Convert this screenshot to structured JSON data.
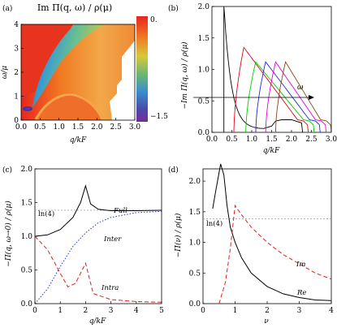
{
  "panels": {
    "a": {
      "label": "(a)",
      "title": "Im Π(q, ω) / ρ(μ)",
      "xlabel": "q/kF",
      "ylabel": "ω/μ"
    },
    "b": {
      "label": "(b)",
      "ylabel": "−Im Π(q, ω) / ρ(μ)",
      "xlabel": "q/kF",
      "arrow_label": "ω"
    },
    "c": {
      "label": "(c)",
      "ylabel": "−Π(q, ω→0) / ρ(μ)",
      "xlabel": "q/kF",
      "ref_label": "ln(4)",
      "labels": {
        "full": "Full",
        "inter": "Inter",
        "intra": "Intra"
      }
    },
    "d": {
      "label": "(d)",
      "ylabel": "−Π(ν) / ρ(μ)",
      "xlabel": "ν",
      "ref_label": "ln(4)",
      "labels": {
        "im": "Im",
        "re": "Re"
      }
    }
  },
  "colorbar": {
    "top_label": "0.",
    "bottom_label": "−1.5"
  },
  "colors": {
    "full": "#000000",
    "inter": "#2233dd",
    "intra": "#dd2222",
    "b_series": [
      "#000000",
      "#e8001a",
      "#00cc00",
      "#1e2bdd",
      "#e000e0",
      "#8b4513"
    ]
  },
  "chart_data": [
    {
      "panel": "a",
      "type": "heatmap",
      "xlim": [
        0,
        3
      ],
      "ylim": [
        0,
        4
      ],
      "xticks": [
        "0.0",
        "0.5",
        "1.0",
        "1.5",
        "2.0",
        "2.5",
        "3.0"
      ],
      "yticks": [
        "0",
        "1",
        "2",
        "3",
        "4"
      ],
      "colorbar_range": [
        -1.5,
        0
      ]
    },
    {
      "panel": "b",
      "type": "line",
      "xlim": [
        0,
        3
      ],
      "ylim": [
        0,
        2
      ],
      "xticks": [
        "0.0",
        "0.5",
        "1.0",
        "1.5",
        "2.0",
        "2.5",
        "3.0"
      ],
      "yticks": [
        "0.0",
        "0.5",
        "1.0",
        "1.5",
        "2.0"
      ],
      "series": [
        {
          "q": 0.3,
          "peak": 2.0,
          "end": 2.25
        },
        {
          "q": 0.55,
          "peak": 1.35,
          "end": 2.4
        },
        {
          "q": 0.85,
          "peak": 1.12,
          "end": 2.55
        },
        {
          "q": 1.1,
          "peak": 1.12,
          "end": 2.7
        },
        {
          "q": 1.35,
          "peak": 1.12,
          "end": 2.85
        },
        {
          "q": 1.6,
          "peak": 1.12,
          "end": 2.98
        }
      ]
    },
    {
      "panel": "c",
      "type": "line",
      "xlim": [
        0,
        5
      ],
      "ylim": [
        0,
        2
      ],
      "xticks": [
        "0",
        "1",
        "2",
        "3",
        "4",
        "5"
      ],
      "yticks": [
        "0.0",
        "0.5",
        "1.0",
        "1.5",
        "2.0"
      ],
      "ref_value": 1.386,
      "series": [
        {
          "key": "full",
          "x": [
            0,
            0.5,
            1.0,
            1.5,
            1.8,
            2.0,
            2.2,
            2.5,
            3.0,
            4.0,
            5.0
          ],
          "y": [
            1.0,
            1.02,
            1.1,
            1.28,
            1.5,
            1.75,
            1.48,
            1.4,
            1.38,
            1.38,
            1.386
          ]
        },
        {
          "key": "inter",
          "x": [
            0,
            0.5,
            1.0,
            1.5,
            2.0,
            2.5,
            3.0,
            4.0,
            5.0
          ],
          "y": [
            0.0,
            0.22,
            0.55,
            0.85,
            1.05,
            1.2,
            1.28,
            1.35,
            1.37
          ]
        },
        {
          "key": "intra",
          "x": [
            0,
            0.5,
            1.0,
            1.3,
            1.6,
            2.0,
            2.3,
            3.0,
            4.0,
            5.0
          ],
          "y": [
            1.0,
            0.8,
            0.45,
            0.25,
            0.3,
            0.6,
            0.15,
            0.06,
            0.03,
            0.02
          ]
        }
      ]
    },
    {
      "panel": "d",
      "type": "line",
      "xlim": [
        0,
        4
      ],
      "ylim": [
        0,
        2.2
      ],
      "xticks": [
        "0",
        "1",
        "2",
        "3",
        "4"
      ],
      "yticks": [
        "0.0",
        "0.5",
        "1.0",
        "1.5",
        "2.0"
      ],
      "ref_value": 1.386,
      "series": [
        {
          "key": "re",
          "x": [
            0.3,
            0.4,
            0.55,
            0.65,
            0.75,
            0.85,
            1.0,
            1.2,
            1.5,
            2.0,
            2.5,
            3.0,
            3.5,
            4.0
          ],
          "y": [
            1.55,
            1.85,
            2.28,
            2.1,
            1.6,
            1.25,
            1.0,
            0.75,
            0.5,
            0.28,
            0.16,
            0.1,
            0.06,
            0.05
          ]
        },
        {
          "key": "im",
          "x": [
            0.5,
            0.7,
            0.85,
            1.0,
            1.2,
            1.5,
            2.0,
            2.5,
            3.0,
            3.5,
            4.0
          ],
          "y": [
            0.0,
            0.35,
            0.9,
            1.6,
            1.45,
            1.25,
            1.0,
            0.8,
            0.65,
            0.5,
            0.4
          ]
        }
      ]
    }
  ]
}
